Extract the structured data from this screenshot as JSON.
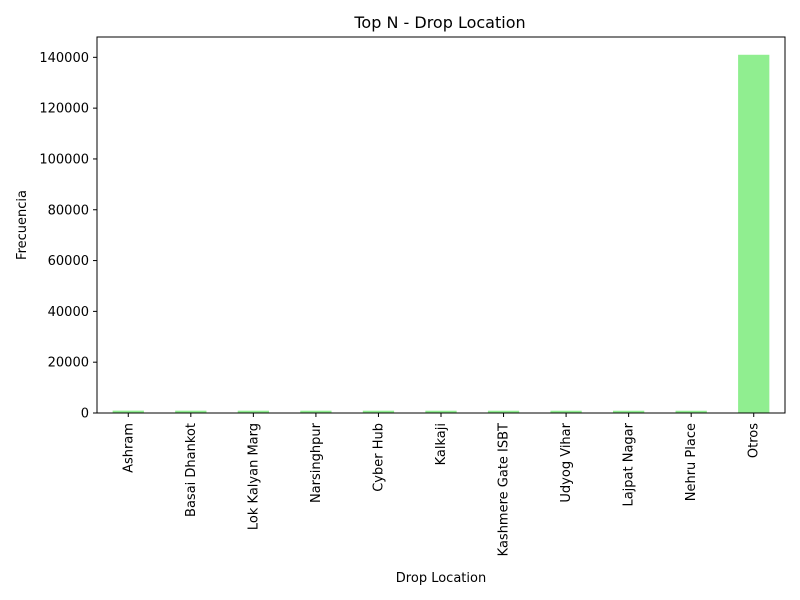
{
  "chart_data": {
    "type": "bar",
    "title": "Top N - Drop Location",
    "xlabel": "Drop Location",
    "ylabel": "Frecuencia",
    "categories": [
      "Ashram",
      "Basai Dhankot",
      "Lok Kalyan Marg",
      "Narsinghpur",
      "Cyber Hub",
      "Kalkaji",
      "Kashmere Gate ISBT",
      "Udyog Vihar",
      "Lajpat Nagar",
      "Nehru Place",
      "Otros"
    ],
    "values": [
      936,
      921,
      916,
      913,
      912,
      906,
      903,
      903,
      898,
      895,
      141000
    ],
    "ylim": [
      0,
      148000
    ],
    "yticks": [
      0,
      20000,
      40000,
      60000,
      80000,
      100000,
      120000,
      140000
    ],
    "bar_color": "#90ee90",
    "grid": false,
    "legend": "none"
  }
}
